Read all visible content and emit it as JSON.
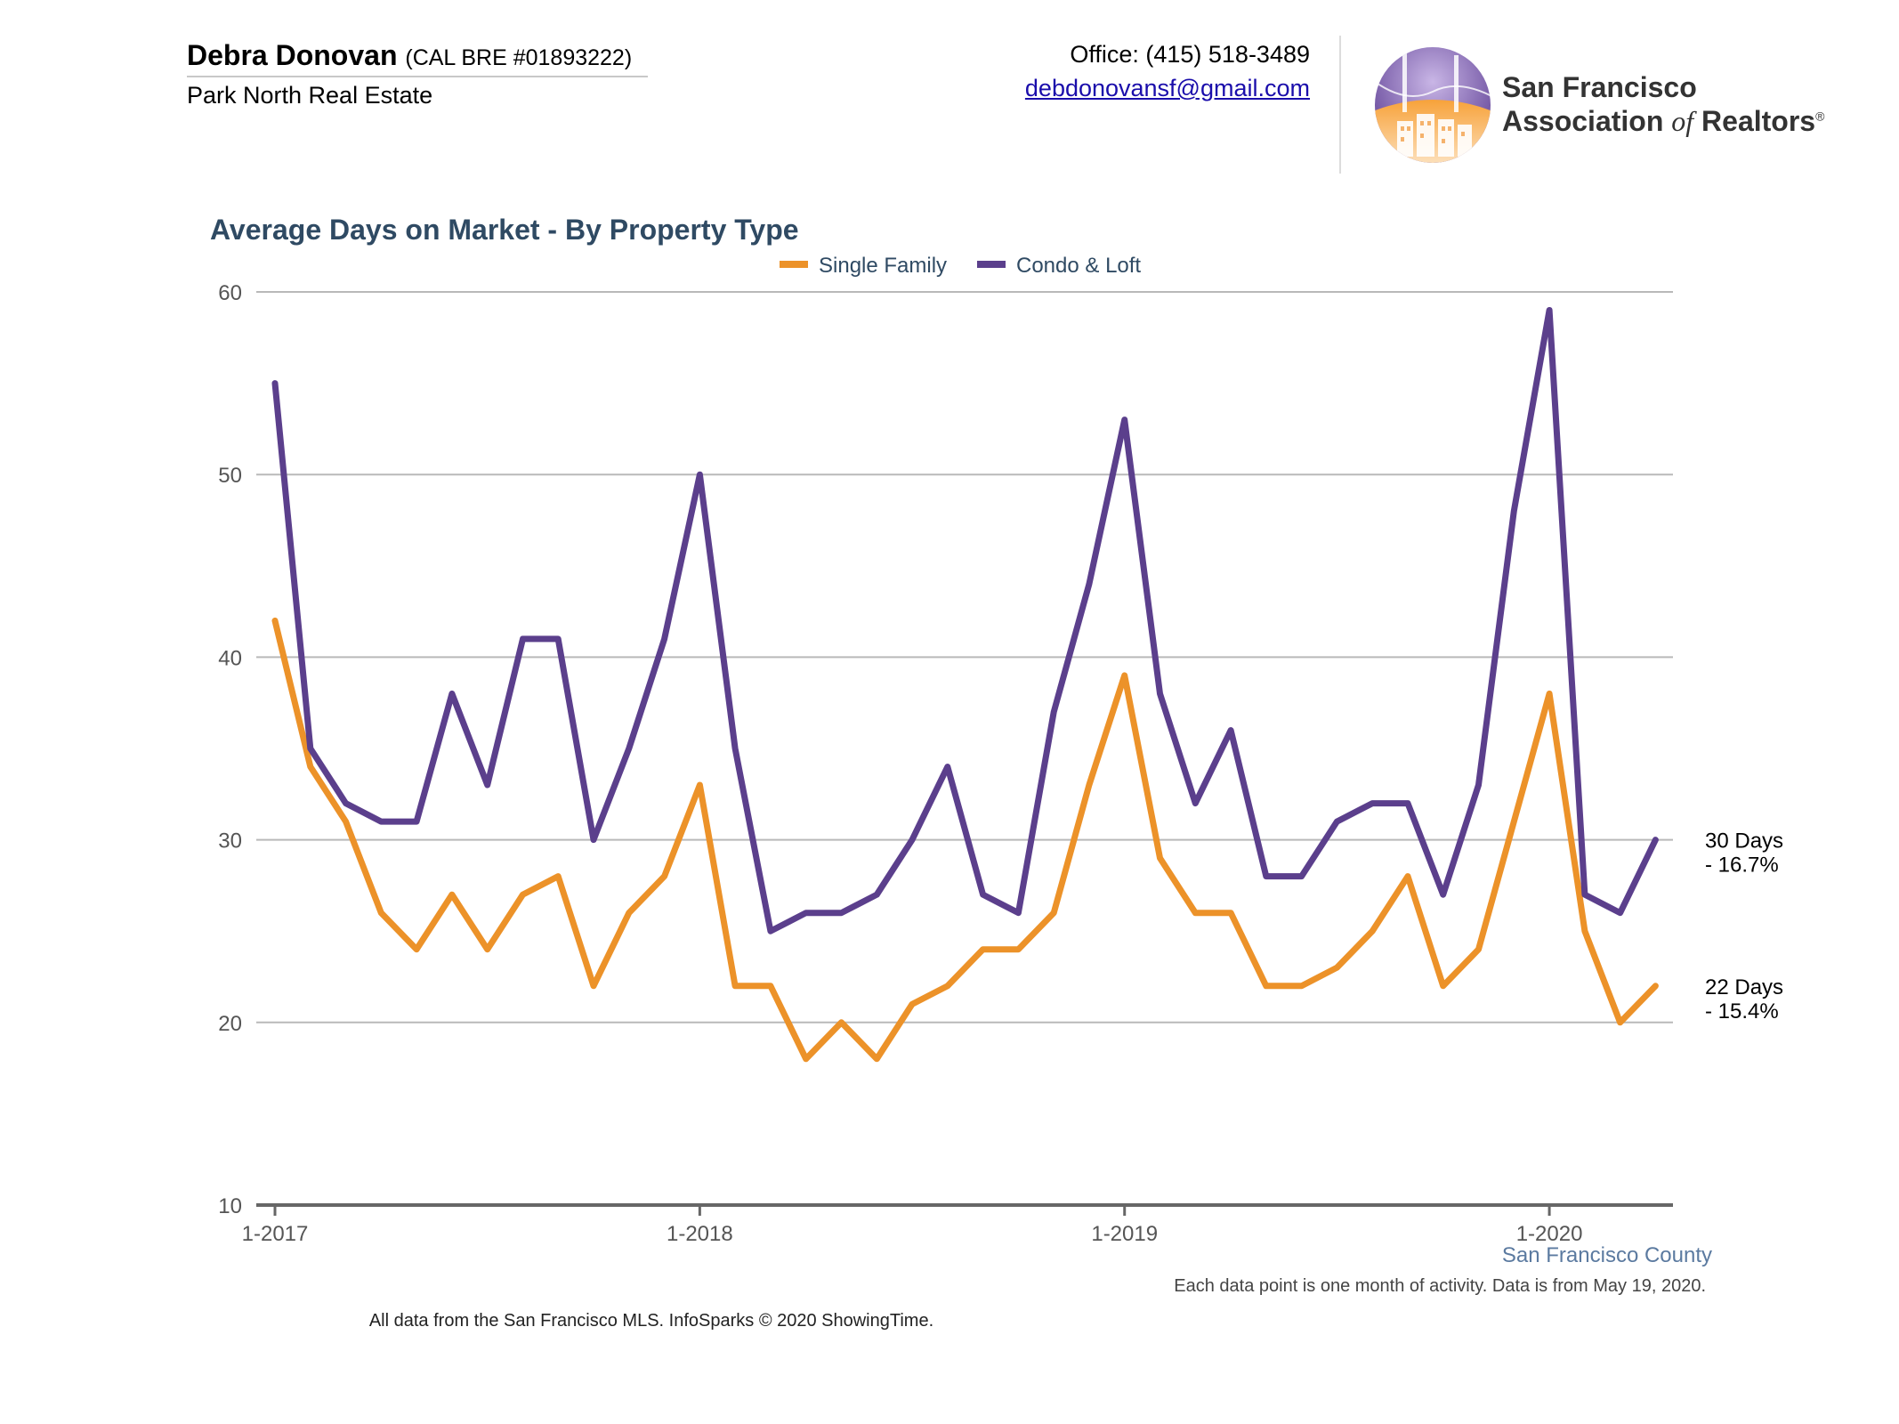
{
  "header": {
    "agent_name": "Debra Donovan",
    "agent_license": "(CAL BRE #01893222)",
    "company": "Park North Real Estate",
    "phone": "Office: (415) 518-3489",
    "email": "debdonovansf@gmail.com",
    "logo_line1": "San Francisco",
    "logo_line2_a": "Association",
    "logo_line2_of": "of",
    "logo_line2_b": "Realtors",
    "logo_registered": "®"
  },
  "footer": {
    "county": "San Francisco County",
    "note": "Each data point is one month of activity. Data is from May 19, 2020.",
    "credit": "All data from the San Francisco MLS. InfoSparks © 2020 ShowingTime."
  },
  "chart_data": {
    "type": "line",
    "title": "Average Days on Market - By Property Type",
    "xlabel": "",
    "ylabel": "",
    "ylim": [
      10,
      60
    ],
    "yticks": [
      10,
      20,
      30,
      40,
      50,
      60
    ],
    "xtick_labels": [
      "1-2017",
      "1-2018",
      "1-2019",
      "1-2020"
    ],
    "xtick_indices": [
      0,
      12,
      24,
      36
    ],
    "grid": true,
    "legend_position": "top-center",
    "colors": {
      "Single Family": "#ec9229",
      "Condo & Loft": "#5b3f8c"
    },
    "x": [
      "1-2017",
      "2-2017",
      "3-2017",
      "4-2017",
      "5-2017",
      "6-2017",
      "7-2017",
      "8-2017",
      "9-2017",
      "10-2017",
      "11-2017",
      "12-2017",
      "1-2018",
      "2-2018",
      "3-2018",
      "4-2018",
      "5-2018",
      "6-2018",
      "7-2018",
      "8-2018",
      "9-2018",
      "10-2018",
      "11-2018",
      "12-2018",
      "1-2019",
      "2-2019",
      "3-2019",
      "4-2019",
      "5-2019",
      "6-2019",
      "7-2019",
      "8-2019",
      "9-2019",
      "10-2019",
      "11-2019",
      "12-2019",
      "1-2020",
      "2-2020",
      "3-2020",
      "4-2020"
    ],
    "series": [
      {
        "name": "Single Family",
        "values": [
          42,
          34,
          31,
          26,
          24,
          27,
          24,
          27,
          28,
          22,
          26,
          28,
          33,
          22,
          22,
          18,
          20,
          18,
          21,
          22,
          24,
          24,
          26,
          33,
          39,
          29,
          26,
          26,
          22,
          22,
          23,
          25,
          28,
          22,
          24,
          31,
          38,
          25,
          20,
          22
        ]
      },
      {
        "name": "Condo & Loft",
        "values": [
          55,
          35,
          32,
          31,
          31,
          38,
          33,
          41,
          41,
          30,
          35,
          41,
          50,
          35,
          25,
          26,
          26,
          27,
          30,
          34,
          27,
          26,
          37,
          44,
          53,
          38,
          32,
          36,
          28,
          28,
          31,
          32,
          32,
          27,
          33,
          48,
          59,
          27,
          26,
          30
        ]
      }
    ],
    "end_labels": [
      {
        "series": "Condo & Loft",
        "line1": "30 Days",
        "line2": "- 16.7%"
      },
      {
        "series": "Single Family",
        "line1": "22 Days",
        "line2": "- 15.4%"
      }
    ]
  }
}
